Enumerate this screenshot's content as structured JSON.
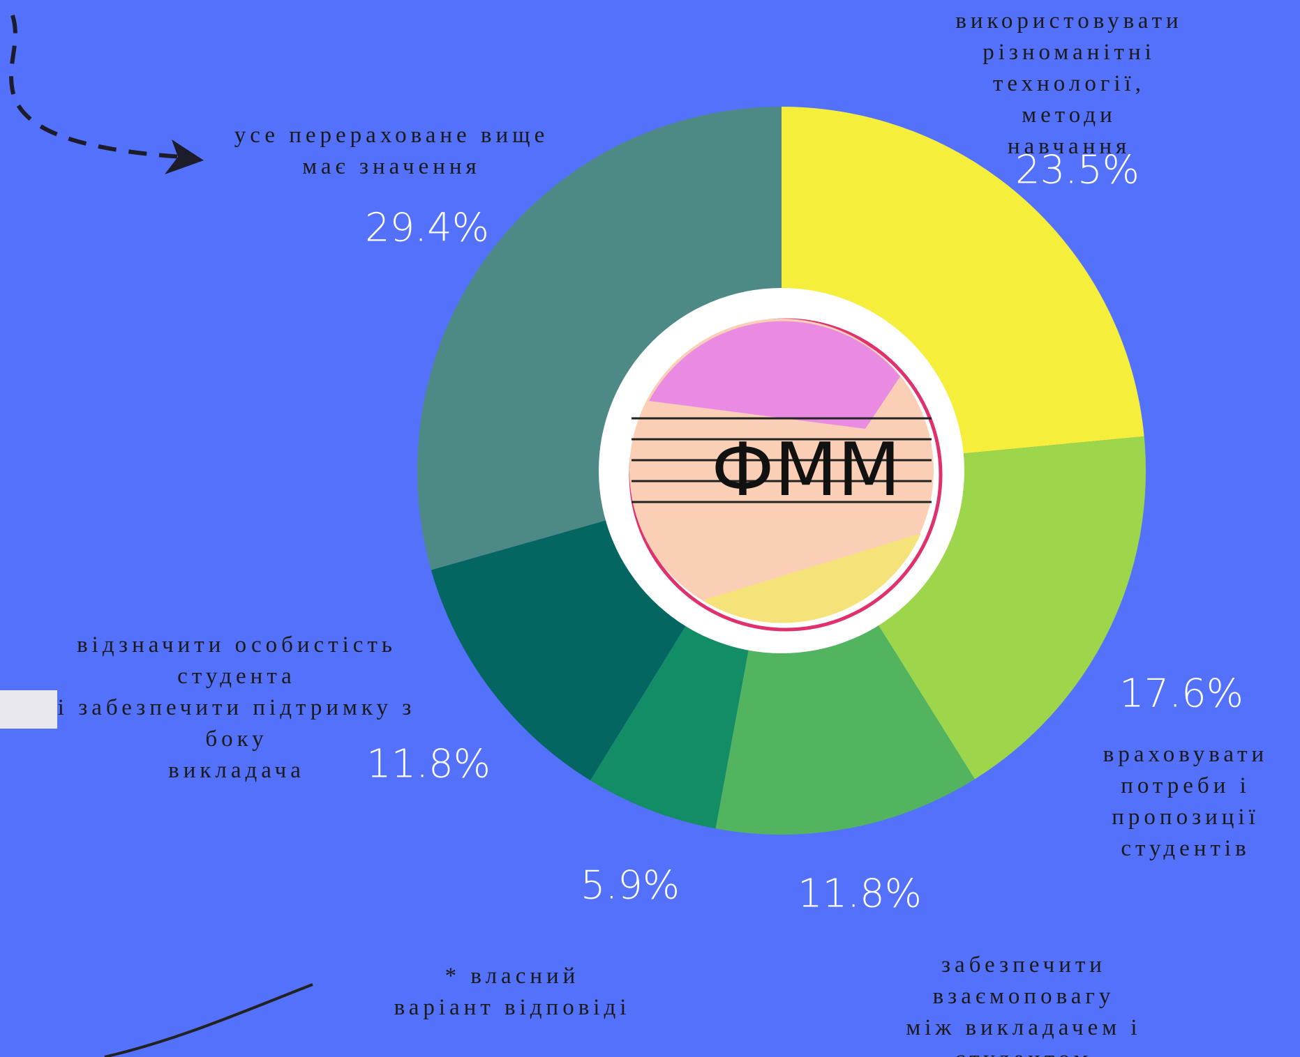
{
  "chart_data": {
    "type": "donut",
    "categories": [
      "використовувати\nрізноманітні\nтехнології, методи\nнавчання",
      "враховувати\nпотреби і\nпропозиції\nстудентів",
      "забезпечити взаємоповагу\nміж  викладачем і\nстудентом",
      "* власний\nваріант відповіді",
      "відзначити особистість\nстудента\nі забезпечити підтримку з\nбоку\nвикладача",
      "усе перераховане вище\nмає значення"
    ],
    "values": [
      23.5,
      17.6,
      11.8,
      5.9,
      11.8,
      29.4
    ],
    "value_labels": [
      "23.5%",
      "17.6%",
      "11.8%",
      "5.9%",
      "11.8%",
      "29.4%"
    ],
    "colors": [
      "#f5ee3a",
      "#9dd64b",
      "#53b460",
      "#138d66",
      "#046660",
      "#4e8a85"
    ],
    "logo_text": "ФММ"
  }
}
